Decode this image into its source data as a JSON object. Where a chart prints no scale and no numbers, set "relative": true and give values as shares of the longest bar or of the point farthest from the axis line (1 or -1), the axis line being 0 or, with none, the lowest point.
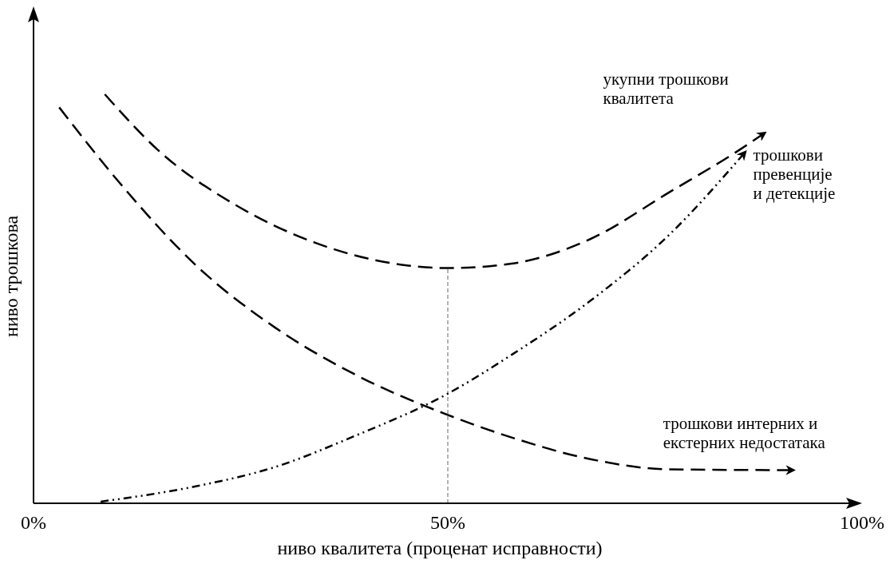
{
  "chart_data": {
    "type": "line",
    "relative": true,
    "xlabel": "ниво квалитета (проценат исправности)",
    "ylabel": "ниво трошкова",
    "xlim": [
      0,
      100
    ],
    "xticks": [
      {
        "value": 0,
        "label": "0%"
      },
      {
        "value": 50,
        "label": "50%"
      },
      {
        "value": 100,
        "label": "100%"
      }
    ],
    "grid": false,
    "ref_lines": [
      {
        "axis": "x",
        "value": 50,
        "color": "#808080",
        "line_style": "dashed"
      }
    ],
    "series": [
      {
        "name": "укупни трошкови квалитета",
        "color": "#000000",
        "line_style": "dashed",
        "x": [
          8.6,
          15,
          24.5,
          34,
          43.5,
          50,
          57.7,
          67.2,
          76.7,
          85.2,
          88
        ],
        "values": [
          1.0,
          0.864,
          0.728,
          0.637,
          0.586,
          0.575,
          0.586,
          0.646,
          0.76,
          0.864,
          0.902
        ]
      },
      {
        "name": "трошкови превенције и детекције",
        "color": "#000000",
        "line_style": "dotted",
        "x": [
          8.1,
          19.7,
          29.2,
          38.7,
          50,
          57.7,
          67.2,
          76.7,
          85.7
        ],
        "values": [
          0.004,
          0.042,
          0.089,
          0.164,
          0.268,
          0.363,
          0.495,
          0.656,
          0.854
        ]
      },
      {
        "name": "трошкови интерних и екстерних недостатака",
        "color": "#000000",
        "line_style": "dashed",
        "x": [
          3.1,
          10.2,
          19.7,
          29.2,
          38.7,
          50,
          57.7,
          67.2,
          76.7,
          91.4
        ],
        "values": [
          0.968,
          0.788,
          0.58,
          0.429,
          0.316,
          0.216,
          0.161,
          0.108,
          0.083,
          0.081
        ]
      }
    ]
  }
}
